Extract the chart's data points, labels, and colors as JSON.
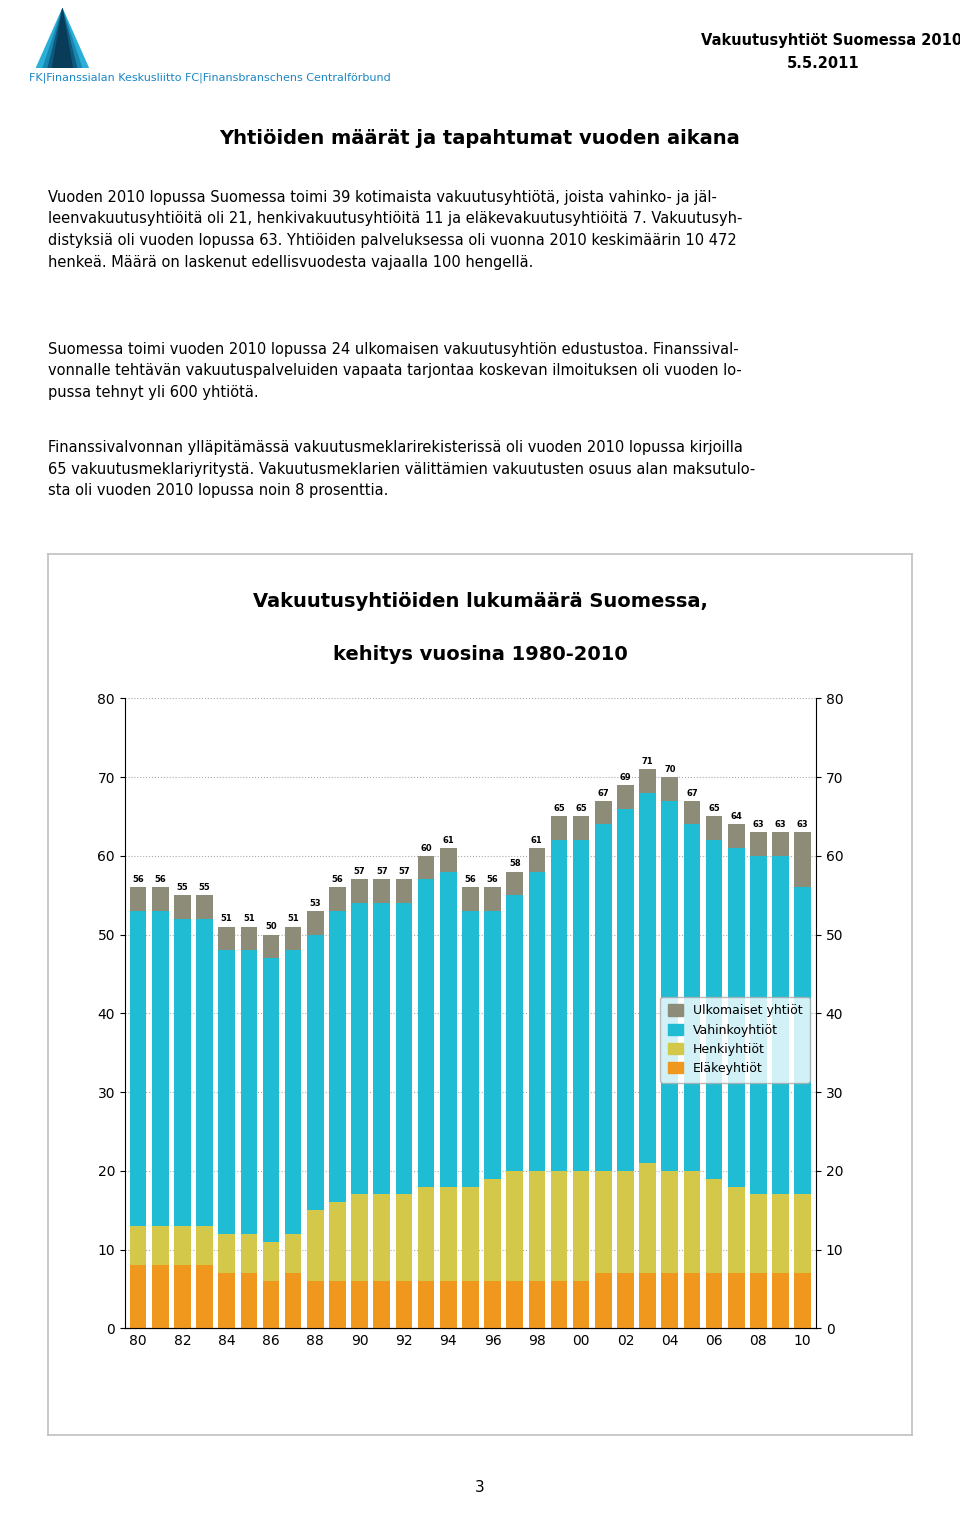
{
  "header_org": "FK|Finanssialan Keskusliitto FC|Finansbranschens Centralförbund",
  "header_title1": "Vakuutusyhtiöt Suomessa 2010",
  "header_title2": "5.5.2011",
  "section_title": "Yhtiöiden määrät ja tapahtumat vuoden aikana",
  "para1": "Vuoden 2010 lopussa Suomessa toimi 39 kotimaista vakuutusyhtiötä, joista vahinko- ja jäl-\nleenvakuutusyhtiöitä oli 21, henkivakuutusyhtiöitä 11 ja eläkevakuutusyhtiöitä 7. Vakuutusyh-\ndistyksiä oli vuoden lopussa 63. Yhtiöiden palveluksessa oli vuonna 2010 keskimäärin 10 472\nhenkeä. Määrä on laskenut edellisvuodesta vajaalla 100 hengellä.",
  "para2": "Suomessa toimi vuoden 2010 lopussa 24 ulkomaisen vakuutusyhtiön edustustoa. Finanssival-\nvonnalle tehtävän vakuutuspalveluiden vapaata tarjontaa koskevan ilmoituksen oli vuoden lo-\npussa tehnyt yli 600 yhtiötä.",
  "para3": "Finanssivalvonnan ylläpitämässä vakuutusmeklarirekisterissä oli vuoden 2010 lopussa kirjoilla\n65 vakuutusmeklariyritystä. Vakuutusmeklarien välittämien vakuutusten osuus alan maksutulo-\nsta oli vuoden 2010 lopussa noin 8 prosenttia.",
  "chart_title1": "Vakuutusyhtiöiden lukumäärä Suomessa,",
  "chart_title2": "kehitys vuosina 1980-2010",
  "xtick_labels": [
    "80",
    "82",
    "84",
    "86",
    "88",
    "90",
    "92",
    "94",
    "96",
    "98",
    "00",
    "02",
    "04",
    "06",
    "08",
    "10"
  ],
  "totals": [
    56,
    56,
    55,
    55,
    51,
    51,
    50,
    51,
    53,
    56,
    57,
    57,
    57,
    60,
    61,
    56,
    56,
    58,
    61,
    65,
    65,
    67,
    69,
    71,
    70,
    67,
    65,
    64,
    63,
    63,
    63
  ],
  "elake": [
    8,
    8,
    8,
    8,
    7,
    7,
    6,
    7,
    6,
    6,
    6,
    6,
    6,
    6,
    6,
    6,
    6,
    6,
    6,
    6,
    6,
    7,
    7,
    7,
    7,
    7,
    7,
    7,
    7,
    7,
    7
  ],
  "henki": [
    5,
    5,
    5,
    5,
    5,
    5,
    5,
    5,
    9,
    10,
    11,
    11,
    11,
    12,
    12,
    12,
    13,
    14,
    14,
    14,
    14,
    13,
    13,
    14,
    13,
    13,
    12,
    11,
    10,
    10,
    10
  ],
  "vahinko": [
    40,
    40,
    39,
    39,
    36,
    36,
    36,
    36,
    35,
    37,
    37,
    37,
    37,
    39,
    40,
    35,
    34,
    35,
    38,
    42,
    42,
    44,
    46,
    47,
    47,
    44,
    43,
    43,
    43,
    43,
    39
  ],
  "ulkom": [
    3,
    3,
    3,
    3,
    3,
    3,
    3,
    3,
    3,
    3,
    3,
    3,
    3,
    3,
    3,
    3,
    3,
    3,
    3,
    3,
    3,
    3,
    3,
    3,
    3,
    3,
    3,
    3,
    3,
    3,
    7
  ],
  "color_elake": "#f0971e",
  "color_henki": "#d4c84a",
  "color_vahinko": "#1fbcd4",
  "color_ulkom": "#8c8c78",
  "legend_labels": [
    "Ulkomaiset yhtiöt",
    "Vahinkoyhtiöt",
    "Henkiyhtiöt",
    "Eläkeyhtiöt"
  ],
  "ylim": [
    0,
    80
  ],
  "yticks": [
    0,
    10,
    20,
    30,
    40,
    50,
    60,
    70,
    80
  ],
  "page_number": "3",
  "color_org_text": "#1a86c5",
  "color_header_line": "#aaaaaa",
  "chart_box_color": "#c0c0c0"
}
